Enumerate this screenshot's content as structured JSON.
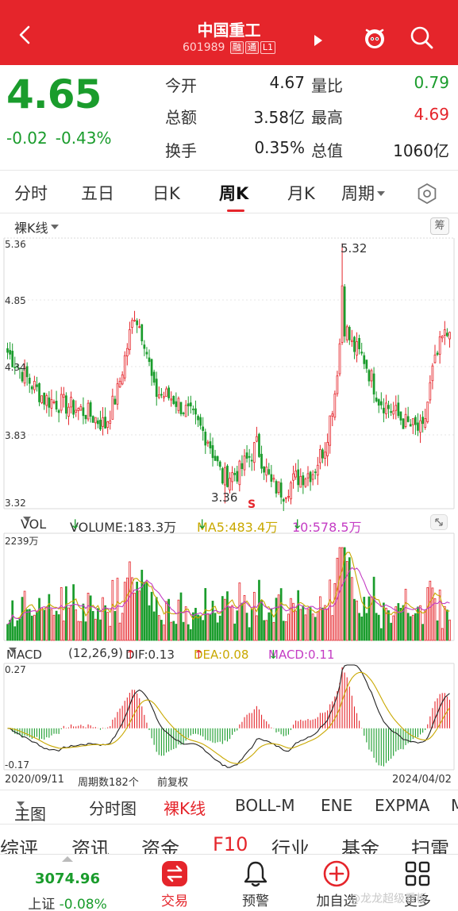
{
  "header": {
    "title": "中国重工",
    "code": "601989",
    "tags": [
      "融",
      "通",
      "L1"
    ]
  },
  "quote": {
    "price": "4.65",
    "change": "-0.02",
    "change_pct": "-0.43%",
    "rows": [
      {
        "label": "今开",
        "value": "4.67",
        "label2": "量比",
        "value2": "0.79"
      },
      {
        "label": "总额",
        "value": "3.58亿",
        "label2": "最高",
        "value2": "4.69"
      },
      {
        "label": "换手",
        "value": "0.35%",
        "label2": "总值",
        "value2": "1060亿"
      }
    ]
  },
  "period_tabs": [
    "分时",
    "五日",
    "日K",
    "周K",
    "月K",
    "周期"
  ],
  "active_period": "周K",
  "kline_mode": "裸K线",
  "chip_button": "筹",
  "price_axis": [
    "5.36",
    "4.85",
    "4.34",
    "3.83",
    "3.32"
  ],
  "price_annotations": {
    "high": "5.32",
    "low": "3.36",
    "signal": "S"
  },
  "volume": {
    "label": "VOL",
    "volume": "VOLUME:183.3万",
    "ma5": "MA5:483.4万",
    "ma10": "10:578.5万",
    "axis_max": "2239万"
  },
  "macd": {
    "label": "MACD",
    "params": "(12,26,9)",
    "dif": "DIF:0.13",
    "dea": "DEA:0.08",
    "macd": "MACD:0.11",
    "axis_top": "0.27",
    "axis_bottom": "-0.17"
  },
  "dates": {
    "start": "2020/09/11",
    "period_count": "周期数182个",
    "adjust": "前复权",
    "end": "2024/04/02"
  },
  "indicator_tabs": [
    "主图",
    "分时图",
    "裸K线",
    "BOLL-M",
    "ENE",
    "EXPMA",
    "M"
  ],
  "active_indicator": "裸K线",
  "section_tabs": [
    "综评",
    "资讯",
    "资金",
    "F10",
    "行业",
    "基金",
    "扫雷"
  ],
  "bottom": {
    "index_value": "3074.96",
    "index_name": "上证",
    "index_change": "-0.08%",
    "items": [
      "交易",
      "预警",
      "加自选",
      "更多"
    ]
  },
  "watermark": "@龙龙超级看板",
  "colors": {
    "up": "#e5252b",
    "down": "#1a9c2c",
    "ma5": "#c9a800",
    "ma10": "#c43cc4"
  },
  "chart_data": {
    "type": "candlestick",
    "ylim": [
      3.32,
      5.36
    ],
    "high_label": 5.32,
    "low_label": 3.36,
    "weeks": 182,
    "anchors": [
      [
        0,
        4.5
      ],
      [
        8,
        4.3
      ],
      [
        15,
        4.15
      ],
      [
        24,
        4.1
      ],
      [
        32,
        4.05
      ],
      [
        40,
        3.95
      ],
      [
        45,
        4.2
      ],
      [
        52,
        4.8
      ],
      [
        56,
        4.6
      ],
      [
        60,
        4.2
      ],
      [
        68,
        4.15
      ],
      [
        76,
        4.0
      ],
      [
        82,
        3.85
      ],
      [
        88,
        3.55
      ],
      [
        95,
        3.6
      ],
      [
        102,
        3.8
      ],
      [
        108,
        3.5
      ],
      [
        113,
        3.45
      ],
      [
        118,
        3.55
      ],
      [
        125,
        3.6
      ],
      [
        130,
        3.8
      ],
      [
        134,
        4.2
      ],
      [
        137,
        4.75
      ],
      [
        141,
        4.55
      ],
      [
        146,
        4.45
      ],
      [
        152,
        4.15
      ],
      [
        158,
        4.05
      ],
      [
        164,
        3.95
      ],
      [
        170,
        3.9
      ],
      [
        174,
        4.35
      ],
      [
        178,
        4.6
      ],
      [
        181,
        4.65
      ]
    ],
    "volume_max": 2239,
    "macd_range": [
      -0.17,
      0.27
    ]
  }
}
